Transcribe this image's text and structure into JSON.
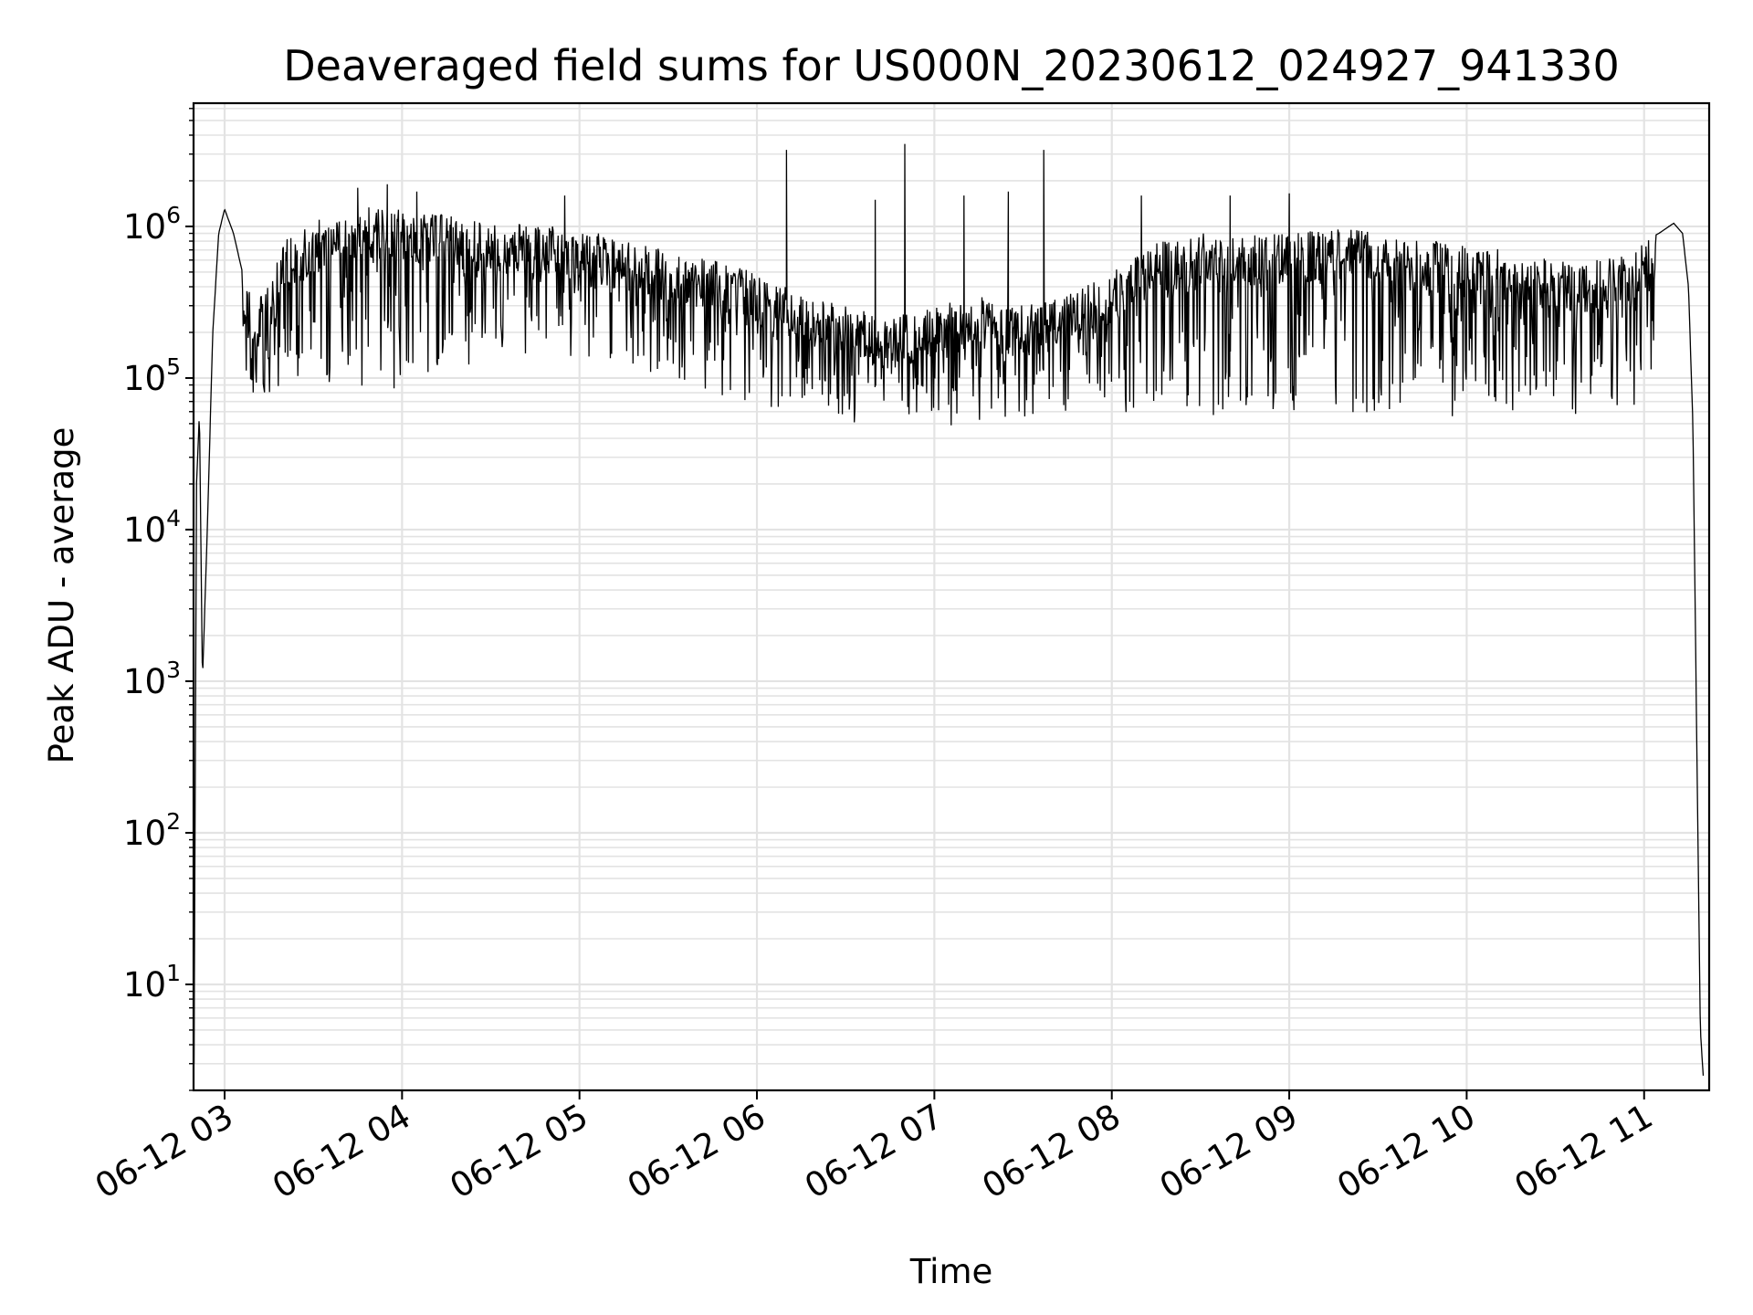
{
  "chart_data": {
    "type": "line",
    "title": "Deaveraged field sums for US000N_20230612_024927_941330",
    "xlabel": "Time",
    "ylabel": "Peak ADU - average",
    "y_scale": "log",
    "grid": true,
    "legend": "none",
    "xlim": [
      "2023-06-12 02:49:30",
      "2023-06-12 11:22:00"
    ],
    "ylim": [
      2,
      6500000
    ],
    "x_ticks": [
      "06-12 03",
      "06-12 04",
      "06-12 05",
      "06-12 06",
      "06-12 07",
      "06-12 08",
      "06-12 09",
      "06-12 10",
      "06-12 11"
    ],
    "x_tick_times": [
      "2023-06-12 03:00",
      "2023-06-12 04:00",
      "2023-06-12 05:00",
      "2023-06-12 06:00",
      "2023-06-12 07:00",
      "2023-06-12 08:00",
      "2023-06-12 09:00",
      "2023-06-12 10:00",
      "2023-06-12 11:00"
    ],
    "y_ticks": [
      {
        "base": "10",
        "exp": "1",
        "value": 10
      },
      {
        "base": "10",
        "exp": "2",
        "value": 100
      },
      {
        "base": "10",
        "exp": "3",
        "value": 1000
      },
      {
        "base": "10",
        "exp": "4",
        "value": 10000
      },
      {
        "base": "10",
        "exp": "5",
        "value": 100000
      },
      {
        "base": "10",
        "exp": "6",
        "value": 1000000
      }
    ],
    "series": [
      {
        "color": "#000000",
        "envelope": {
          "x": [
            "02:49:40",
            "02:50:30",
            "02:51:30",
            "02:52:30",
            "02:54:00",
            "02:56:00",
            "02:58:00",
            "03:00:00",
            "03:03:00",
            "03:06:00",
            "03:10:00",
            "03:15:00",
            "03:20:00",
            "03:30:00",
            "03:45:00",
            "04:00:00",
            "04:15:00",
            "04:30:00",
            "04:45:00",
            "05:00:00",
            "05:15:00",
            "05:30:00",
            "05:45:00",
            "06:00:00",
            "06:15:00",
            "06:30:00",
            "06:45:00",
            "07:00:00",
            "07:15:00",
            "07:30:00",
            "07:45:00",
            "08:00:00",
            "08:15:00",
            "08:30:00",
            "08:45:00",
            "09:00:00",
            "09:15:00",
            "09:30:00",
            "09:45:00",
            "10:00:00",
            "10:15:00",
            "10:30:00",
            "10:45:00",
            "10:55:00",
            "11:00:00",
            "11:05:00",
            "11:10:00",
            "11:13:00",
            "11:15:00",
            "11:16:30",
            "11:18:00",
            "11:19:00",
            "11:20:00"
          ],
          "y": [
            3,
            20000,
            60000,
            1000,
            8000,
            200000,
            900000,
            1300000,
            900000,
            500000,
            350000,
            400000,
            800000,
            1100000,
            1400000,
            1300000,
            1200000,
            1100000,
            1000000,
            1000000,
            800000,
            700000,
            600000,
            500000,
            350000,
            300000,
            250000,
            300000,
            350000,
            300000,
            350000,
            500000,
            800000,
            900000,
            900000,
            900000,
            1000000,
            900000,
            800000,
            800000,
            700000,
            600000,
            600000,
            700000,
            800000,
            900000,
            1050000,
            900000,
            400000,
            50000,
            200,
            5,
            2.5
          ]
        },
        "dips": [
          [
            "03:30:00",
            80000
          ],
          [
            "03:33:00",
            100000
          ],
          [
            "03:42:00",
            72000
          ],
          [
            "03:50:00",
            90000
          ],
          [
            "03:58:00",
            80000
          ],
          [
            "04:10:00",
            95000
          ],
          [
            "04:30:00",
            140000
          ],
          [
            "04:55:00",
            120000
          ],
          [
            "05:10:00",
            130000
          ],
          [
            "05:45:00",
            80000
          ],
          [
            "06:00:00",
            65000
          ],
          [
            "06:15:00",
            60000
          ],
          [
            "06:30:00",
            50000
          ],
          [
            "06:45:00",
            55000
          ],
          [
            "06:55:00",
            50000
          ],
          [
            "07:05:00",
            48000
          ],
          [
            "07:15:00",
            50000
          ],
          [
            "07:30:00",
            55000
          ],
          [
            "07:45:00",
            55000
          ],
          [
            "08:00:00",
            60000
          ],
          [
            "08:15:00",
            52000
          ],
          [
            "08:30:00",
            55000
          ],
          [
            "08:45:00",
            50000
          ],
          [
            "09:00:00",
            55000
          ],
          [
            "09:10:00",
            50000
          ],
          [
            "09:30:00",
            60000
          ],
          [
            "09:50:00",
            52000
          ],
          [
            "10:00:00",
            50000
          ],
          [
            "10:15:00",
            60000
          ],
          [
            "10:30:00",
            50000
          ],
          [
            "10:45:00",
            60000
          ]
        ],
        "spikes": [
          [
            "06:10:00",
            3200000
          ],
          [
            "06:50:00",
            3500000
          ],
          [
            "07:37:00",
            3200000
          ],
          [
            "06:40:00",
            1500000
          ],
          [
            "07:10:00",
            1600000
          ],
          [
            "07:25:00",
            1700000
          ],
          [
            "08:10:00",
            1600000
          ],
          [
            "08:40:00",
            1600000
          ],
          [
            "09:00:00",
            1650000
          ],
          [
            "03:45:00",
            1800000
          ],
          [
            "03:55:00",
            1900000
          ],
          [
            "04:05:00",
            1700000
          ],
          [
            "04:55:00",
            1600000
          ]
        ]
      }
    ]
  }
}
